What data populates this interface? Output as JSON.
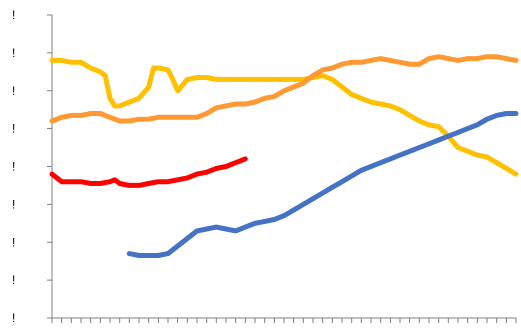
{
  "chart_data": {
    "type": "line",
    "title": "",
    "xlabel": "",
    "ylabel": "",
    "y_tick_labels": [
      "!",
      "!",
      "!",
      "!",
      "!",
      "!",
      "!",
      "!",
      "!"
    ],
    "xlim": [
      0,
      48
    ],
    "ylim": [
      0,
      8
    ],
    "grid": false,
    "legend": "none",
    "colors": {
      "axis": "#7f7f7f"
    },
    "series": [
      {
        "color": "#ffc000",
        "points": [
          [
            0,
            6.8
          ],
          [
            1,
            6.8
          ],
          [
            2,
            6.75
          ],
          [
            3,
            6.75
          ],
          [
            4,
            6.6
          ],
          [
            5,
            6.5
          ],
          [
            5.5,
            6.4
          ],
          [
            6,
            5.8
          ],
          [
            6.5,
            5.6
          ],
          [
            7,
            5.6
          ],
          [
            8,
            5.7
          ],
          [
            9,
            5.8
          ],
          [
            10,
            6.1
          ],
          [
            10.5,
            6.6
          ],
          [
            11,
            6.6
          ],
          [
            12,
            6.55
          ],
          [
            12.5,
            6.3
          ],
          [
            13,
            6.0
          ],
          [
            14,
            6.3
          ],
          [
            15,
            6.35
          ],
          [
            16,
            6.35
          ],
          [
            17,
            6.3
          ],
          [
            18,
            6.3
          ],
          [
            19,
            6.3
          ],
          [
            20,
            6.3
          ],
          [
            21,
            6.3
          ],
          [
            22,
            6.3
          ],
          [
            23,
            6.3
          ],
          [
            24,
            6.3
          ],
          [
            25,
            6.3
          ],
          [
            26,
            6.3
          ],
          [
            27,
            6.35
          ],
          [
            28,
            6.4
          ],
          [
            29,
            6.3
          ],
          [
            30,
            6.1
          ],
          [
            31,
            5.9
          ],
          [
            32,
            5.8
          ],
          [
            33,
            5.7
          ],
          [
            34,
            5.65
          ],
          [
            35,
            5.6
          ],
          [
            36,
            5.5
          ],
          [
            37,
            5.35
          ],
          [
            38,
            5.2
          ],
          [
            39,
            5.1
          ],
          [
            40,
            5.05
          ],
          [
            41,
            4.8
          ],
          [
            42,
            4.5
          ],
          [
            43,
            4.4
          ],
          [
            44,
            4.3
          ],
          [
            45,
            4.25
          ],
          [
            46,
            4.1
          ],
          [
            47,
            3.95
          ],
          [
            48,
            3.8
          ]
        ]
      },
      {
        "color": "#ff9933",
        "points": [
          [
            0,
            5.2
          ],
          [
            1,
            5.3
          ],
          [
            2,
            5.35
          ],
          [
            3,
            5.35
          ],
          [
            4,
            5.4
          ],
          [
            5,
            5.4
          ],
          [
            6,
            5.3
          ],
          [
            7,
            5.2
          ],
          [
            8,
            5.2
          ],
          [
            9,
            5.25
          ],
          [
            10,
            5.25
          ],
          [
            11,
            5.3
          ],
          [
            12,
            5.3
          ],
          [
            13,
            5.3
          ],
          [
            14,
            5.3
          ],
          [
            15,
            5.3
          ],
          [
            16,
            5.4
          ],
          [
            17,
            5.55
          ],
          [
            18,
            5.6
          ],
          [
            19,
            5.65
          ],
          [
            20,
            5.65
          ],
          [
            21,
            5.7
          ],
          [
            22,
            5.8
          ],
          [
            23,
            5.85
          ],
          [
            24,
            6.0
          ],
          [
            25,
            6.1
          ],
          [
            26,
            6.2
          ],
          [
            27,
            6.4
          ],
          [
            28,
            6.55
          ],
          [
            29,
            6.6
          ],
          [
            30,
            6.7
          ],
          [
            31,
            6.75
          ],
          [
            32,
            6.75
          ],
          [
            33,
            6.8
          ],
          [
            34,
            6.85
          ],
          [
            35,
            6.8
          ],
          [
            36,
            6.75
          ],
          [
            37,
            6.7
          ],
          [
            38,
            6.7
          ],
          [
            39,
            6.85
          ],
          [
            40,
            6.9
          ],
          [
            41,
            6.85
          ],
          [
            42,
            6.8
          ],
          [
            43,
            6.85
          ],
          [
            44,
            6.85
          ],
          [
            45,
            6.9
          ],
          [
            46,
            6.9
          ],
          [
            47,
            6.85
          ],
          [
            48,
            6.8
          ]
        ]
      },
      {
        "color": "#ff0000",
        "points": [
          [
            0,
            3.8
          ],
          [
            1,
            3.6
          ],
          [
            2,
            3.6
          ],
          [
            3,
            3.6
          ],
          [
            4,
            3.55
          ],
          [
            5,
            3.55
          ],
          [
            6,
            3.6
          ],
          [
            6.5,
            3.65
          ],
          [
            7,
            3.55
          ],
          [
            8,
            3.5
          ],
          [
            9,
            3.5
          ],
          [
            10,
            3.55
          ],
          [
            11,
            3.6
          ],
          [
            12,
            3.6
          ],
          [
            13,
            3.65
          ],
          [
            14,
            3.7
          ],
          [
            15,
            3.8
          ],
          [
            16,
            3.85
          ],
          [
            17,
            3.95
          ],
          [
            18,
            4.0
          ],
          [
            19,
            4.1
          ],
          [
            20,
            4.2
          ]
        ]
      },
      {
        "color": "#4472c4",
        "points": [
          [
            8,
            1.7
          ],
          [
            9,
            1.65
          ],
          [
            10,
            1.65
          ],
          [
            11,
            1.65
          ],
          [
            12,
            1.7
          ],
          [
            13,
            1.9
          ],
          [
            14,
            2.1
          ],
          [
            15,
            2.3
          ],
          [
            16,
            2.35
          ],
          [
            17,
            2.4
          ],
          [
            18,
            2.35
          ],
          [
            19,
            2.3
          ],
          [
            20,
            2.4
          ],
          [
            21,
            2.5
          ],
          [
            22,
            2.55
          ],
          [
            23,
            2.6
          ],
          [
            24,
            2.7
          ],
          [
            25,
            2.85
          ],
          [
            26,
            3.0
          ],
          [
            27,
            3.15
          ],
          [
            28,
            3.3
          ],
          [
            29,
            3.45
          ],
          [
            30,
            3.6
          ],
          [
            31,
            3.75
          ],
          [
            32,
            3.9
          ],
          [
            33,
            4.0
          ],
          [
            34,
            4.1
          ],
          [
            35,
            4.2
          ],
          [
            36,
            4.3
          ],
          [
            37,
            4.4
          ],
          [
            38,
            4.5
          ],
          [
            39,
            4.6
          ],
          [
            40,
            4.7
          ],
          [
            41,
            4.8
          ],
          [
            42,
            4.9
          ],
          [
            43,
            5.0
          ],
          [
            44,
            5.1
          ],
          [
            45,
            5.25
          ],
          [
            46,
            5.35
          ],
          [
            47,
            5.4
          ],
          [
            48,
            5.4
          ]
        ]
      }
    ]
  }
}
